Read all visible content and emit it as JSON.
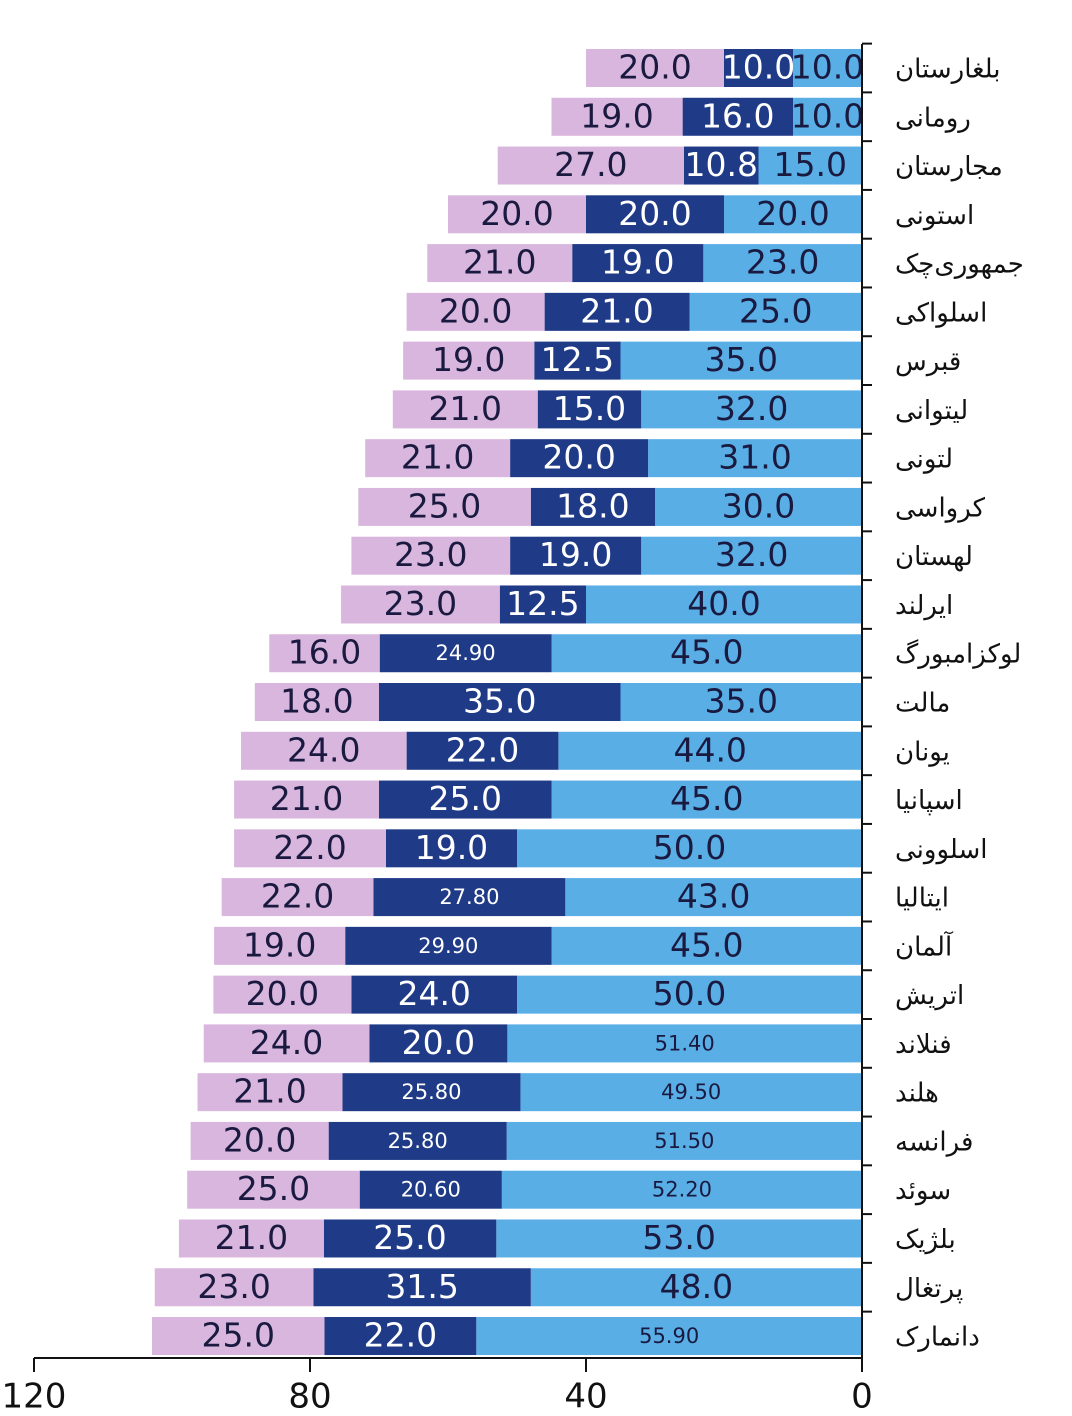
{
  "chart_data": {
    "type": "stacked_barh",
    "categories": [
      "بلغارستان",
      "رومانی",
      "مجارستان",
      "استونی",
      "جمهوری‌چک",
      "اسلواکی",
      "قبرس",
      "لیتوانی",
      "لتونی",
      "کرواسی",
      "لهستان",
      "ایرلند",
      "لوکزامبورگ",
      "مالت",
      "یونان",
      "اسپانیا",
      "اسلوونی",
      "ایتالیا",
      "آلمان",
      "اتریش",
      "فنلاند",
      "هلند",
      "فرانسه",
      "سوئد",
      "بلژیک",
      "پرتغال",
      "دانمارک"
    ],
    "series": [
      {
        "color": "#5aaee6",
        "values": [
          10,
          10,
          15,
          20,
          23,
          25,
          35,
          32,
          31,
          30,
          32,
          40,
          45,
          35,
          44,
          45,
          50,
          43,
          45,
          50,
          51.4,
          49.5,
          51.5,
          52.2,
          53,
          48,
          55.9
        ],
        "value_labels": [
          "10.0",
          "10.0",
          "15.0",
          "20.0",
          "23.0",
          "25.0",
          "35.0",
          "32.0",
          "31.0",
          "30.0",
          "32.0",
          "40.0",
          "45.0",
          "35.0",
          "44.0",
          "45.0",
          "50.0",
          "43.0",
          "45.0",
          "50.0",
          "51.40",
          "49.50",
          "51.50",
          "52.20",
          "53.0",
          "48.0",
          "55.90"
        ]
      },
      {
        "color": "#1f3a86",
        "values": [
          10,
          16,
          10.8,
          20,
          19,
          21,
          12.5,
          15,
          20,
          18,
          19,
          12.5,
          24.9,
          35,
          22,
          25,
          19,
          27.8,
          29.9,
          24,
          20,
          25.8,
          25.8,
          20.6,
          25,
          31.5,
          22
        ],
        "value_labels": [
          "10.0",
          "16.0",
          "10.8",
          "20.0",
          "19.0",
          "21.0",
          "12.5",
          "15.0",
          "20.0",
          "18.0",
          "19.0",
          "12.5",
          "24.90",
          "35.0",
          "22.0",
          "25.0",
          "19.0",
          "27.80",
          "29.90",
          "24.0",
          "20.0",
          "25.80",
          "25.80",
          "20.60",
          "25.0",
          "31.5",
          "22.0"
        ]
      },
      {
        "color": "#d9b6dd",
        "values": [
          20,
          19,
          27,
          20,
          21,
          20,
          19,
          21,
          21,
          25,
          23,
          23,
          16,
          18,
          24,
          21,
          22,
          22,
          19,
          20,
          24,
          21,
          20,
          25,
          21,
          23,
          25
        ],
        "value_labels": [
          "20.0",
          "19.0",
          "27.0",
          "20.0",
          "21.0",
          "20.0",
          "19.0",
          "21.0",
          "21.0",
          "25.0",
          "23.0",
          "23.0",
          "16.0",
          "18.0",
          "24.0",
          "21.0",
          "22.0",
          "22.0",
          "19.0",
          "20.0",
          "24.0",
          "21.0",
          "20.0",
          "25.0",
          "21.0",
          "23.0",
          "25.0"
        ]
      }
    ],
    "xlim": [
      0,
      120
    ],
    "xticks": [
      0,
      40,
      80,
      120
    ],
    "x_reversed": true
  }
}
